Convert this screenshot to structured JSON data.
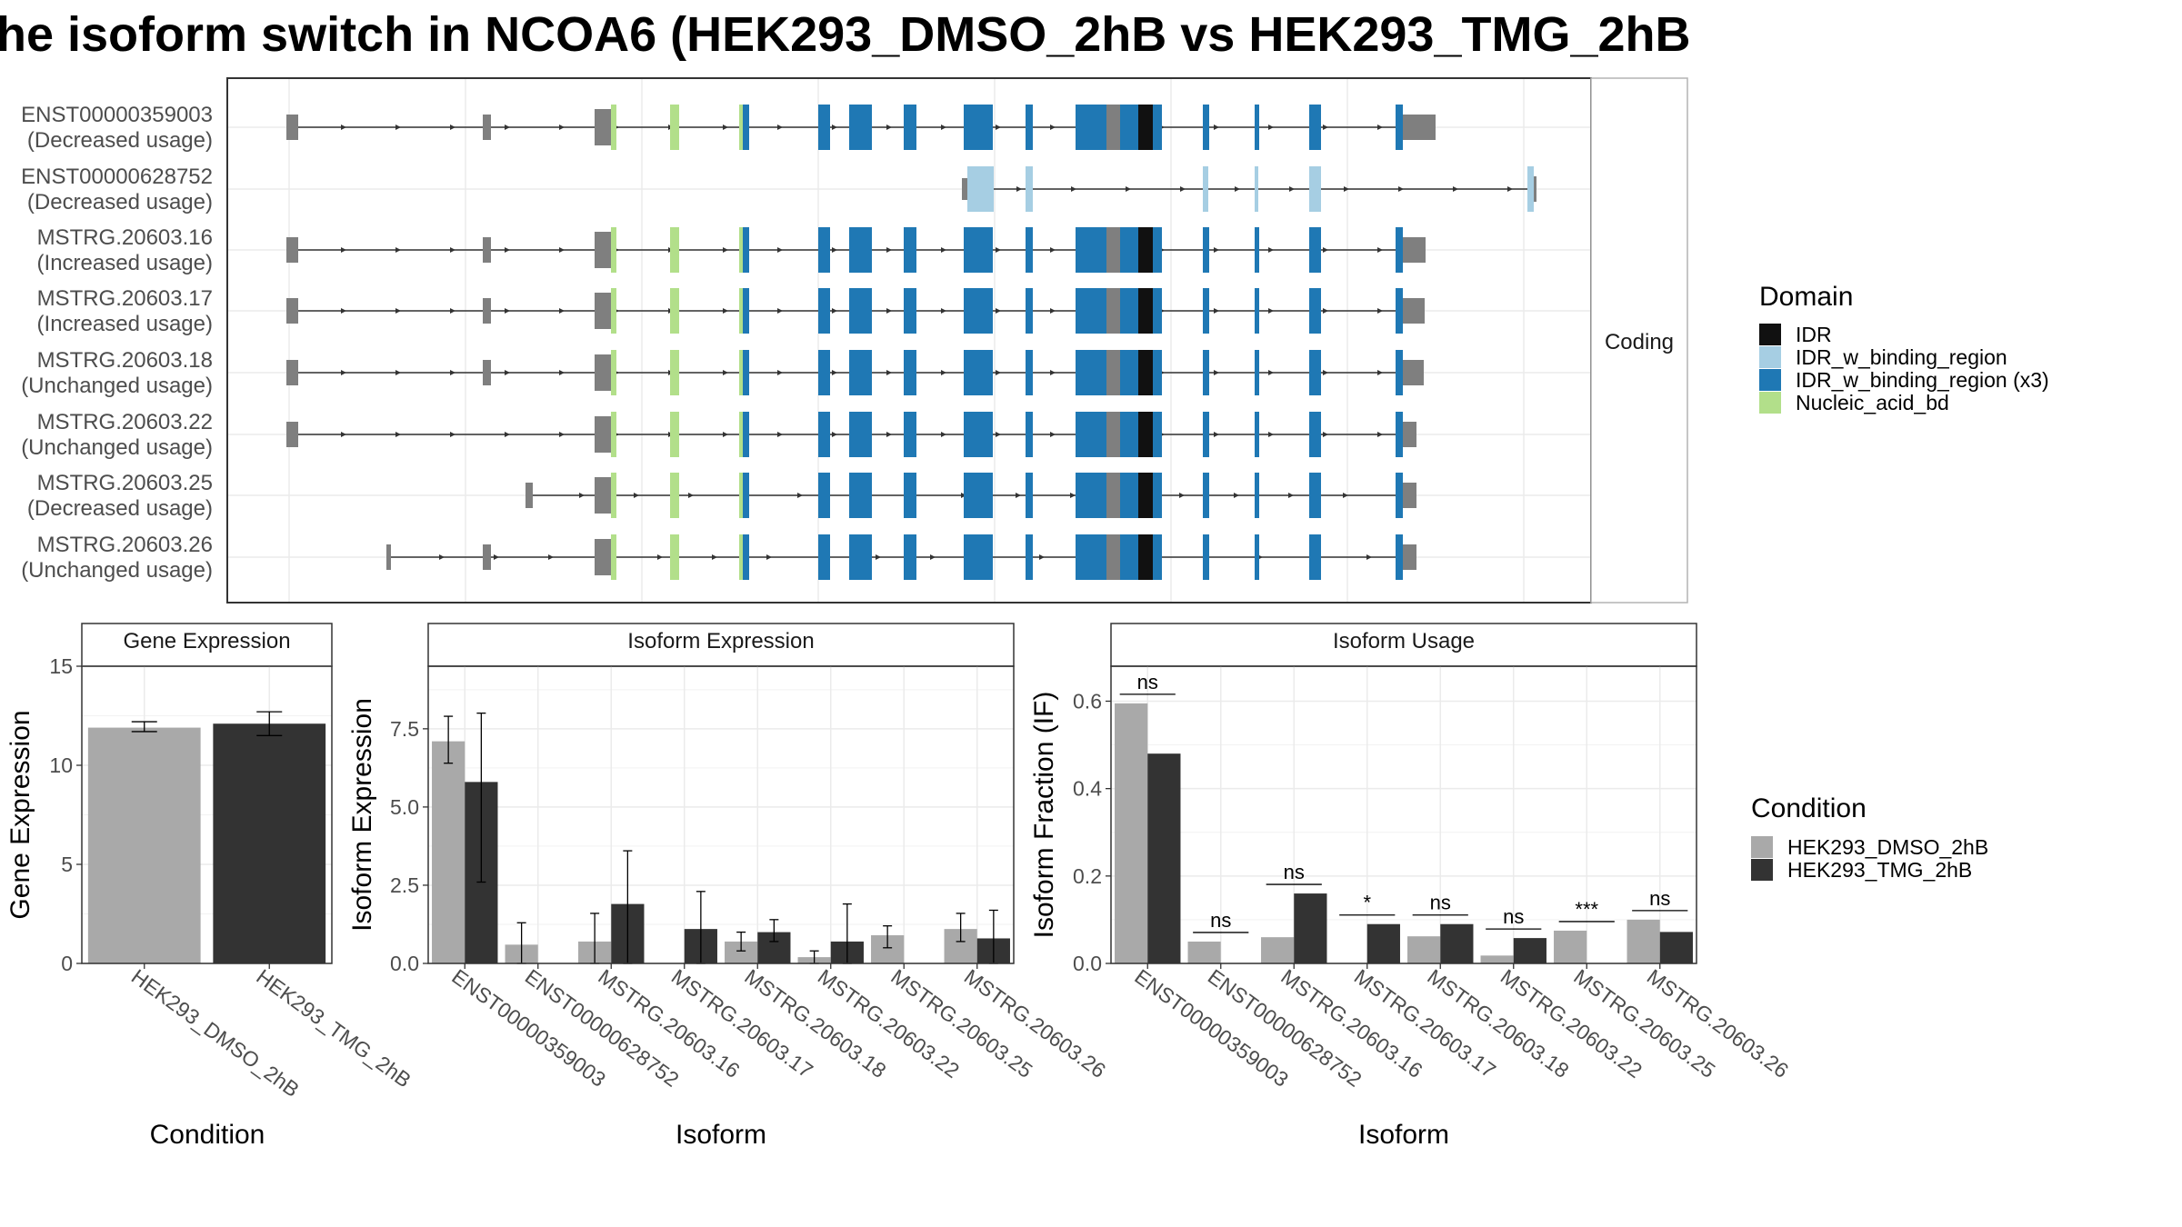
{
  "title": "he isoform switch in NCOA6 (HEK293_DMSO_2hB vs HEK293_TMG_2hB",
  "structure_panel": {
    "strip_label": "Coding",
    "isoforms": [
      {
        "name": "ENST00000359003",
        "usage": "(Decreased usage)"
      },
      {
        "name": "ENST00000628752",
        "usage": "(Decreased usage)"
      },
      {
        "name": "MSTRG.20603.16",
        "usage": "(Increased usage)"
      },
      {
        "name": "MSTRG.20603.17",
        "usage": "(Increased usage)"
      },
      {
        "name": "MSTRG.20603.18",
        "usage": "(Unchanged usage)"
      },
      {
        "name": "MSTRG.20603.22",
        "usage": "(Unchanged usage)"
      },
      {
        "name": "MSTRG.20603.25",
        "usage": "(Decreased usage)"
      },
      {
        "name": "MSTRG.20603.26",
        "usage": "(Unchanged usage)"
      }
    ]
  },
  "domain_legend": {
    "title": "Domain",
    "items": [
      {
        "label": "IDR",
        "color": "#111111"
      },
      {
        "label": "IDR_w_binding_region",
        "color": "#a6cee3"
      },
      {
        "label": "IDR_w_binding_region (x3)",
        "color": "#1f78b4"
      },
      {
        "label": "Nucleic_acid_bd",
        "color": "#b2df8a"
      }
    ]
  },
  "condition_legend": {
    "title": "Condition",
    "items": [
      {
        "label": "HEK293_DMSO_2hB",
        "color": "#a9a9a9"
      },
      {
        "label": "HEK293_TMG_2hB",
        "color": "#333333"
      }
    ]
  },
  "colors": {
    "utr": "#7f7f7f",
    "dmso": "#a9a9a9",
    "tmg": "#333333",
    "grid": "#ebebeb",
    "intron": "#333333"
  },
  "chart_data": [
    {
      "type": "bar",
      "title": "Gene Expression",
      "xlabel": "Condition",
      "ylabel": "Gene Expression",
      "ylim": [
        0,
        15
      ],
      "yticks": [
        0,
        5,
        10,
        15
      ],
      "categories": [
        "HEK293_DMSO_2hB",
        "HEK293_TMG_2hB"
      ],
      "values": [
        11.9,
        12.1
      ],
      "error_low": [
        11.7,
        11.5
      ],
      "error_high": [
        12.2,
        12.7
      ],
      "grid": true
    },
    {
      "type": "bar",
      "title": "Isoform Expression",
      "xlabel": "Isoform",
      "ylabel": "Isoform Expression",
      "ylim": [
        0,
        9.5
      ],
      "yticks": [
        0.0,
        2.5,
        5.0,
        7.5
      ],
      "ytick_labels": [
        "0.0",
        "2.5",
        "5.0",
        "7.5"
      ],
      "categories": [
        "ENST00000359003",
        "ENST00000628752",
        "MSTRG.20603.16",
        "MSTRG.20603.17",
        "MSTRG.20603.18",
        "MSTRG.20603.22",
        "MSTRG.20603.25",
        "MSTRG.20603.26"
      ],
      "series": [
        {
          "name": "HEK293_DMSO_2hB",
          "values": [
            7.1,
            0.6,
            0.7,
            0.0,
            0.7,
            0.2,
            0.9,
            1.1
          ],
          "error_low": [
            6.4,
            0.0,
            0.0,
            0.0,
            0.4,
            0.0,
            0.5,
            0.7
          ],
          "error_high": [
            7.9,
            1.3,
            1.6,
            0.0,
            1.0,
            0.4,
            1.2,
            1.6
          ]
        },
        {
          "name": "HEK293_TMG_2hB",
          "values": [
            5.8,
            0.0,
            1.9,
            1.1,
            1.0,
            0.7,
            0.0,
            0.8
          ],
          "error_low": [
            2.6,
            0.0,
            0.0,
            0.0,
            0.7,
            0.0,
            0.0,
            0.0
          ],
          "error_high": [
            8.0,
            0.0,
            3.6,
            2.3,
            1.4,
            1.9,
            0.0,
            1.7
          ]
        }
      ],
      "grid": true
    },
    {
      "type": "bar",
      "title": "Isoform Usage",
      "xlabel": "Isoform",
      "ylabel": "Isoform Fraction (IF)",
      "ylim": [
        0,
        0.68
      ],
      "yticks": [
        0.0,
        0.2,
        0.4,
        0.6
      ],
      "ytick_labels": [
        "0.0",
        "0.2",
        "0.4",
        "0.6"
      ],
      "categories": [
        "ENST00000359003",
        "ENST00000628752",
        "MSTRG.20603.16",
        "MSTRG.20603.17",
        "MSTRG.20603.18",
        "MSTRG.20603.22",
        "MSTRG.20603.25",
        "MSTRG.20603.26"
      ],
      "series": [
        {
          "name": "HEK293_DMSO_2hB",
          "values": [
            0.595,
            0.05,
            0.06,
            0.0,
            0.062,
            0.018,
            0.075,
            0.1
          ]
        },
        {
          "name": "HEK293_TMG_2hB",
          "values": [
            0.48,
            0.0,
            0.16,
            0.09,
            0.09,
            0.058,
            0.0,
            0.072
          ]
        }
      ],
      "significance": [
        "ns",
        "ns",
        "ns",
        "*",
        "ns",
        "ns",
        "***",
        "ns"
      ],
      "grid": true
    }
  ]
}
